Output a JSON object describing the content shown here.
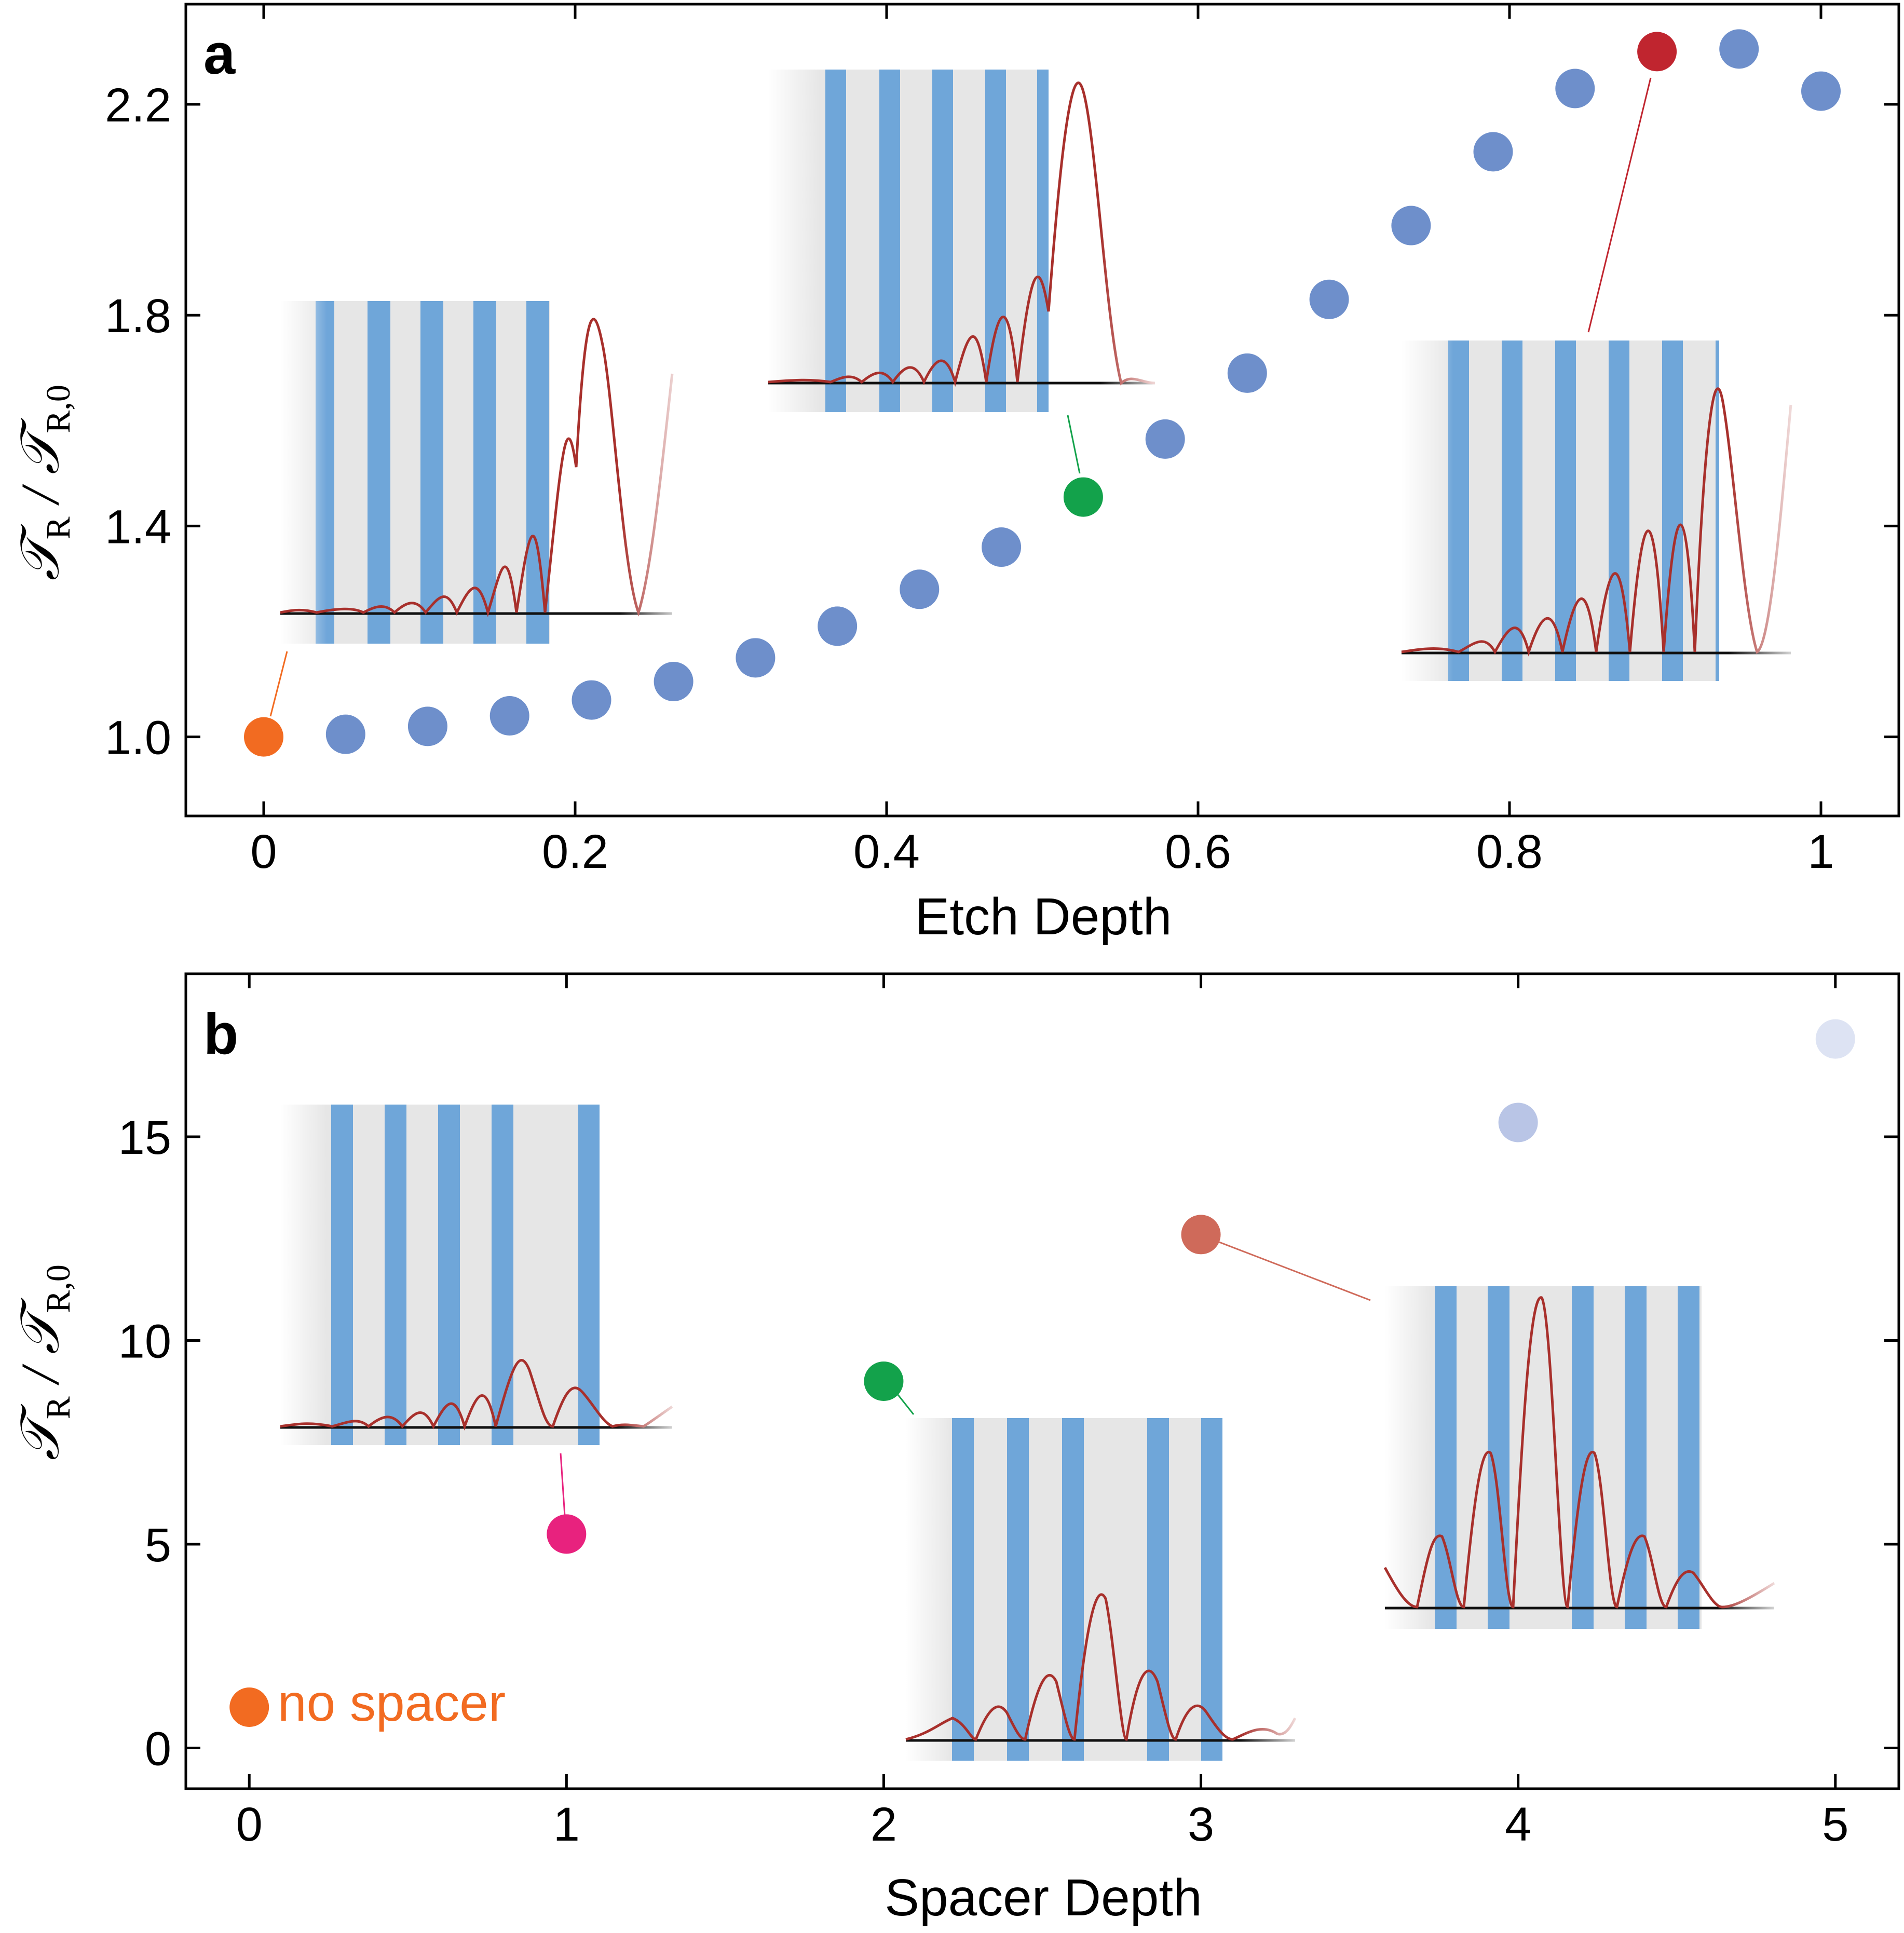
{
  "chart_data": [
    {
      "panel": "a",
      "type": "scatter",
      "title": "",
      "xlabel": "Etch Depth",
      "ylabel_main": "𝒯",
      "ylabel_sub1": "R",
      "ylabel_sub2": "R,0",
      "xlim": [
        -0.05,
        1.05
      ],
      "ylim": [
        0.85,
        2.39
      ],
      "xticks": [
        0,
        0.2,
        0.4,
        0.6,
        0.8,
        1
      ],
      "xtick_labels": [
        "0",
        "0.2",
        "0.4",
        "0.6",
        "0.8",
        "1"
      ],
      "yticks": [
        1.0,
        1.4,
        1.8,
        2.2
      ],
      "ytick_labels": [
        "1.0",
        "1.4",
        "1.8",
        "2.2"
      ],
      "points": [
        {
          "x": 0.0,
          "y": 1.0,
          "color": "#f26b21"
        },
        {
          "x": 0.0526,
          "y": 1.005,
          "color": "#6e8fcb"
        },
        {
          "x": 0.1053,
          "y": 1.02,
          "color": "#6e8fcb"
        },
        {
          "x": 0.1579,
          "y": 1.04,
          "color": "#6e8fcb"
        },
        {
          "x": 0.2105,
          "y": 1.07,
          "color": "#6e8fcb"
        },
        {
          "x": 0.2632,
          "y": 1.105,
          "color": "#6e8fcb"
        },
        {
          "x": 0.3158,
          "y": 1.15,
          "color": "#6e8fcb"
        },
        {
          "x": 0.3684,
          "y": 1.21,
          "color": "#6e8fcb"
        },
        {
          "x": 0.4211,
          "y": 1.28,
          "color": "#6e8fcb"
        },
        {
          "x": 0.4737,
          "y": 1.36,
          "color": "#6e8fcb"
        },
        {
          "x": 0.5263,
          "y": 1.455,
          "color": "#13a24b"
        },
        {
          "x": 0.5789,
          "y": 1.565,
          "color": "#6e8fcb"
        },
        {
          "x": 0.6316,
          "y": 1.69,
          "color": "#6e8fcb"
        },
        {
          "x": 0.6842,
          "y": 1.83,
          "color": "#6e8fcb"
        },
        {
          "x": 0.7368,
          "y": 1.97,
          "color": "#6e8fcb"
        },
        {
          "x": 0.7895,
          "y": 2.11,
          "color": "#6e8fcb"
        },
        {
          "x": 0.8421,
          "y": 2.23,
          "color": "#6e8fcb"
        },
        {
          "x": 0.8947,
          "y": 2.3,
          "color": "#c0252f"
        },
        {
          "x": 0.9474,
          "y": 2.305,
          "color": "#6e8fcb"
        },
        {
          "x": 1.0,
          "y": 2.225,
          "color": "#6e8fcb"
        }
      ]
    },
    {
      "panel": "b",
      "type": "scatter",
      "title": "",
      "xlabel": "Spacer Depth",
      "ylabel_main": "𝒯",
      "ylabel_sub1": "R",
      "ylabel_sub2": "R,0",
      "xlim": [
        -0.2,
        5.2
      ],
      "ylim": [
        -1.0,
        19.0
      ],
      "xticks": [
        0,
        1,
        2,
        3,
        4,
        5
      ],
      "xtick_labels": [
        "0",
        "1",
        "2",
        "3",
        "4",
        "5"
      ],
      "yticks": [
        0,
        5,
        10,
        15
      ],
      "ytick_labels": [
        "0",
        "5",
        "10",
        "15"
      ],
      "points": [
        {
          "x": 0,
          "y": 1.0,
          "color": "#f26b21"
        },
        {
          "x": 1,
          "y": 5.25,
          "color": "#e8227e"
        },
        {
          "x": 2,
          "y": 9.0,
          "color": "#13a24b"
        },
        {
          "x": 3,
          "y": 12.6,
          "color": "#cf6a5a"
        },
        {
          "x": 4,
          "y": 15.35,
          "color": "#b9c5e6"
        },
        {
          "x": 5,
          "y": 17.4,
          "color": "#dde3f3"
        }
      ],
      "annotation": {
        "text": "no spacer",
        "color": "#f26b21"
      }
    }
  ],
  "panel_labels": [
    "a",
    "b"
  ]
}
